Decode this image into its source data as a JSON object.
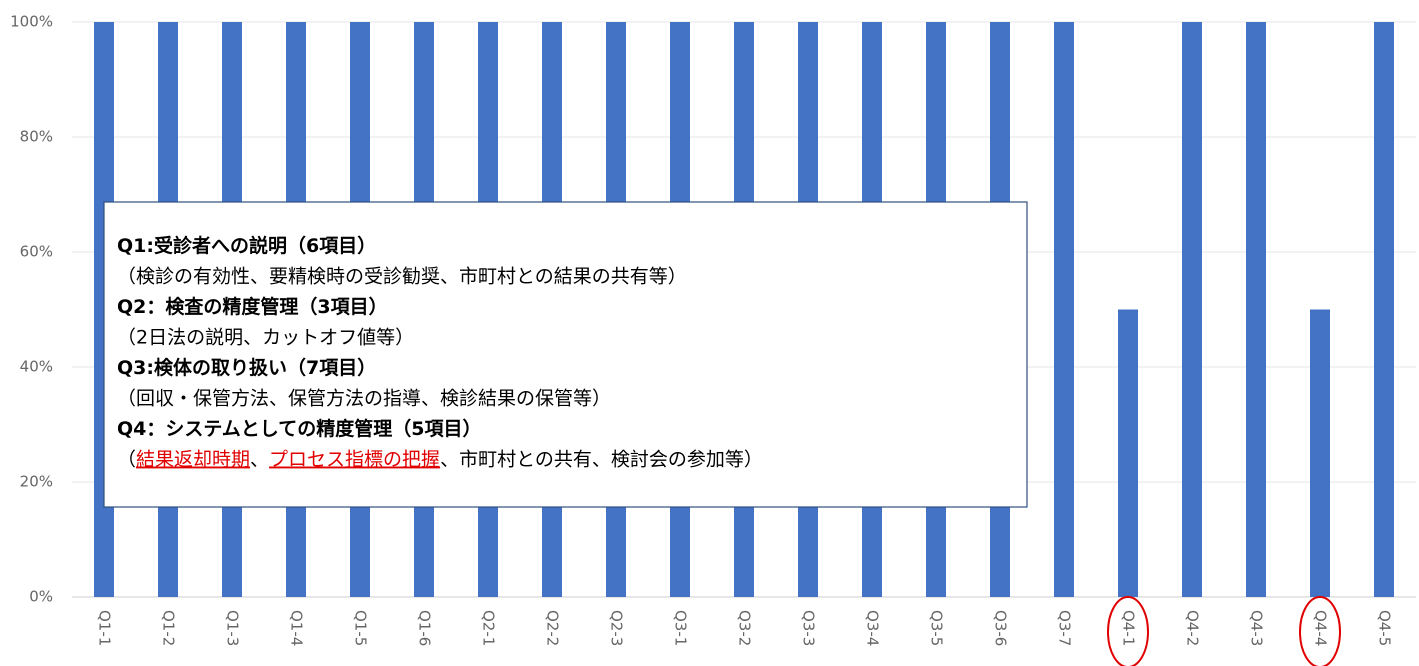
{
  "chart_data": {
    "type": "bar",
    "categories": [
      "Q1-1",
      "Q1-2",
      "Q1-3",
      "Q1-4",
      "Q1-5",
      "Q1-6",
      "Q2-1",
      "Q2-2",
      "Q2-3",
      "Q3-1",
      "Q3-2",
      "Q3-3",
      "Q3-4",
      "Q3-5",
      "Q3-6",
      "Q3-7",
      "Q4-1",
      "Q4-2",
      "Q4-3",
      "Q4-4",
      "Q4-5"
    ],
    "values": [
      100,
      100,
      100,
      100,
      100,
      100,
      100,
      100,
      100,
      100,
      100,
      100,
      100,
      100,
      100,
      100,
      50,
      100,
      100,
      50,
      100
    ],
    "color": "#4472c4",
    "ylim": [
      0,
      100
    ],
    "yticks": [
      {
        "value": 0,
        "label": "0%"
      },
      {
        "value": 20,
        "label": "20%"
      },
      {
        "value": 40,
        "label": "40%"
      },
      {
        "value": 60,
        "label": "60%"
      },
      {
        "value": 80,
        "label": "80%"
      },
      {
        "value": 100,
        "label": "100%"
      }
    ],
    "grid": true,
    "annotation": {
      "lines": [
        {
          "segments": [
            {
              "text": "Q1:受診者への説明（6項目）"
            }
          ],
          "bold": true
        },
        {
          "segments": [
            {
              "text": "（検診の有効性、要精検時の受診勧奨、市町村との結果の共有等）"
            }
          ],
          "bold": false
        },
        {
          "segments": [
            {
              "text": "Q2：検査の精度管理（3項目）"
            }
          ],
          "bold": true
        },
        {
          "segments": [
            {
              "text": "（2日法の説明、カットオフ値等）"
            }
          ],
          "bold": false
        },
        {
          "segments": [
            {
              "text": "Q3:検体の取り扱い（7項目）"
            }
          ],
          "bold": true
        },
        {
          "segments": [
            {
              "text": "（回収・保管方法、保管方法の指導、検診結果の保管等）"
            }
          ],
          "bold": false
        },
        {
          "segments": [
            {
              "text": "Q4：システムとしての精度管理（5項目）"
            }
          ],
          "bold": true
        },
        {
          "segments": [
            {
              "text": "（"
            },
            {
              "text": "結果返却時期",
              "highlight": true
            },
            {
              "text": "、"
            },
            {
              "text": "プロセス指標の把握",
              "highlight": true
            },
            {
              "text": "、市町村との共有、検討会の参加等）"
            }
          ],
          "bold": false
        }
      ]
    }
  }
}
